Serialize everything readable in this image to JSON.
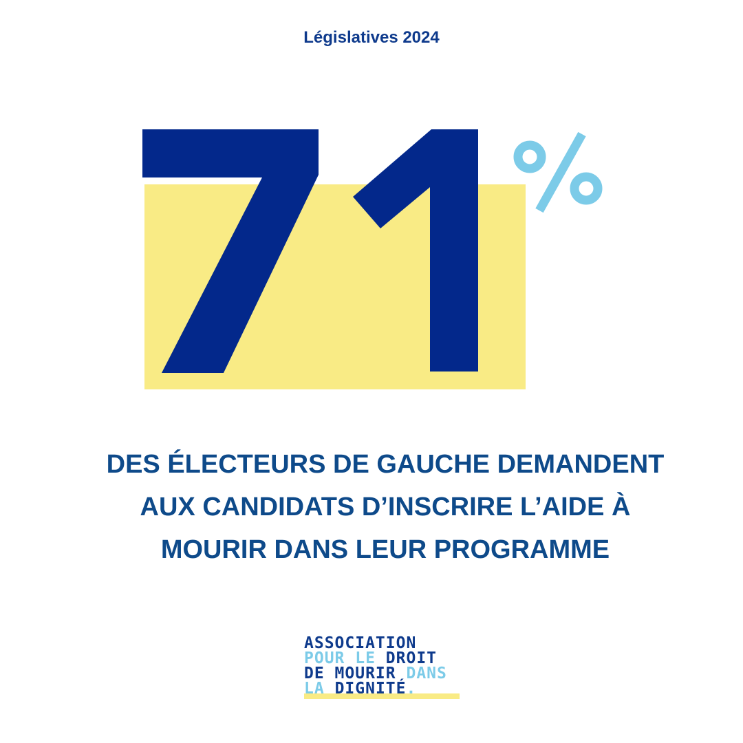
{
  "header": {
    "kicker": "Législatives 2024"
  },
  "stat": {
    "value": "71",
    "unit": "%"
  },
  "tagline": {
    "lines": [
      "DES ÉLECTEURS DE GAUCHE DEMANDENT",
      "AUX CANDIDATS D’INSCRIRE L’AIDE À",
      "MOURIR DANS LEUR PROGRAMME"
    ]
  },
  "logo": {
    "line1": [
      "ASSOCIATION"
    ],
    "line2": [
      "POUR LE",
      "DROIT"
    ],
    "line3": [
      "DE MOURIR",
      "DANS"
    ],
    "line4": [
      "LA",
      "DIGNITÉ",
      "."
    ]
  },
  "colors": {
    "dark_blue": "#03288b",
    "text_blue": "#0e4a8a",
    "light_blue": "#7ccbe8",
    "highlight_yellow": "#f9eb85",
    "background": "#ffffff"
  }
}
